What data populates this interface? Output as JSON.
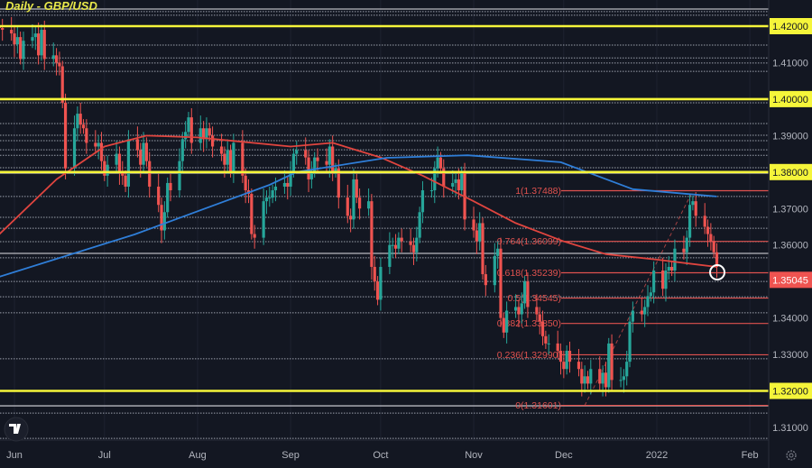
{
  "chart_data": {
    "type": "candlestick",
    "title": "Daily - GBP/USD",
    "first_candle_date": "2021-05-27",
    "closes": [
      1.4195,
      1.419,
      1.418,
      1.415,
      1.417,
      1.411,
      1.416,
      1.417,
      1.418,
      1.412,
      1.419,
      1.411,
      1.412,
      1.41,
      1.409,
      1.399,
      1.381,
      1.392,
      1.396,
      1.393,
      1.392,
      1.388,
      1.387,
      1.388,
      1.383,
      1.379,
      1.382,
      1.385,
      1.38,
      1.379,
      1.376,
      1.389,
      1.386,
      1.382,
      1.388,
      1.383,
      1.376,
      1.371,
      1.364,
      1.369,
      1.377,
      1.375,
      1.383,
      1.389,
      1.391,
      1.395,
      1.388,
      1.392,
      1.389,
      1.392,
      1.39,
      1.387,
      1.385,
      1.382,
      1.386,
      1.38,
      1.388,
      1.379,
      1.375,
      1.374,
      1.363,
      1.362,
      1.372,
      1.373,
      1.373,
      1.375,
      1.376,
      1.377,
      1.376,
      1.38,
      1.385,
      1.386,
      1.384,
      1.378,
      1.38,
      1.384,
      1.383,
      1.382,
      1.387,
      1.38,
      1.381,
      1.373,
      1.368,
      1.367,
      1.378,
      1.373,
      1.37,
      1.372,
      1.354,
      1.35,
      1.345,
      1.354,
      1.36,
      1.36,
      1.359,
      1.362,
      1.361,
      1.36,
      1.358,
      1.362,
      1.369,
      1.375,
      1.375,
      1.381,
      1.384,
      1.381,
      1.376,
      1.377,
      1.378,
      1.375,
      1.38,
      1.367,
      1.364,
      1.361,
      1.366,
      1.352,
      1.349,
      1.357,
      1.359,
      1.34,
      1.336,
      1.342,
      1.343,
      1.341,
      1.344,
      1.35,
      1.343,
      1.341,
      1.339,
      1.335,
      1.333,
      1.333,
      1.331,
      1.328,
      1.326,
      1.331,
      1.328,
      1.326,
      1.322,
      1.324,
      1.322,
      1.326,
      1.322,
      1.325,
      1.321,
      1.333,
      1.323,
      1.323,
      1.324,
      1.328,
      1.339,
      1.342,
      1.341,
      1.343,
      1.346,
      1.347,
      1.353,
      1.348,
      1.353,
      1.354,
      1.353,
      1.359,
      1.358,
      1.362,
      1.371,
      1.372,
      1.368,
      1.365,
      1.363,
      1.361,
      1.358,
      1.354
    ],
    "ma_red": [
      [
        "2021-05-27",
        1.363
      ],
      [
        "2021-06-15",
        1.378
      ],
      [
        "2021-07-01",
        1.387
      ],
      [
        "2021-07-15",
        1.39
      ],
      [
        "2021-08-01",
        1.3895
      ],
      [
        "2021-09-01",
        1.387
      ],
      [
        "2021-09-15",
        1.388
      ],
      [
        "2021-10-01",
        1.384
      ],
      [
        "2021-10-15",
        1.379
      ],
      [
        "2021-11-01",
        1.372
      ],
      [
        "2021-11-15",
        1.366
      ],
      [
        "2021-12-01",
        1.361
      ],
      [
        "2021-12-15",
        1.3575
      ],
      [
        "2022-01-01",
        1.356
      ],
      [
        "2022-01-21",
        1.354
      ]
    ],
    "ma_blue": [
      [
        "2021-05-27",
        1.3513
      ],
      [
        "2021-07-11",
        1.3629
      ],
      [
        "2021-08-25",
        1.3765
      ],
      [
        "2021-09-03",
        1.38
      ],
      [
        "2021-10-03",
        1.3839
      ],
      [
        "2021-10-30",
        1.3846
      ],
      [
        "2021-11-30",
        1.3827
      ],
      [
        "2021-12-24",
        1.3753
      ],
      [
        "2022-01-21",
        1.3733
      ]
    ],
    "ylim": [
      1.303,
      1.4272
    ],
    "y_ticks": [
      "1.42000",
      "1.41000",
      "1.40000",
      "1.39000",
      "1.38000",
      "1.37000",
      "1.36000",
      "1.34000",
      "1.33000",
      "1.32000",
      "1.31000"
    ],
    "x_ticks": [
      [
        "Jun",
        "2021-06-01"
      ],
      [
        "Jul",
        "2021-07-01"
      ],
      [
        "Aug",
        "2021-08-01"
      ],
      [
        "Sep",
        "2021-09-01"
      ],
      [
        "Oct",
        "2021-10-01"
      ],
      [
        "Nov",
        "2021-11-01"
      ],
      [
        "Dec",
        "2021-12-01"
      ],
      [
        "2022",
        "2022-01-01"
      ],
      [
        "Feb",
        "2022-02-01"
      ]
    ],
    "key_levels": [
      1.42,
      1.4,
      1.38,
      1.32
    ],
    "solid_levels": [
      1.4247,
      1.3797,
      1.3577,
      1.3159
    ],
    "dotted_levels": [
      1.424,
      1.423,
      1.4148,
      1.4113,
      1.4099,
      1.4076,
      1.399,
      1.3933,
      1.3901,
      1.3886,
      1.3861,
      1.3846,
      1.3812,
      1.3733,
      1.3676,
      1.3646,
      1.3609,
      1.3565,
      1.35,
      1.3458,
      1.3414,
      1.3288,
      1.3139,
      1.307
    ],
    "current_price": "1.35045",
    "fibonacci": {
      "from": [
        "2021-12-08",
        1.31601
      ],
      "to": [
        "2022-01-13",
        1.37488
      ],
      "levels": [
        {
          "ratio": "1",
          "price": 1.37488,
          "label": "1(1.37488)"
        },
        {
          "ratio": "0.764",
          "price": 1.36099,
          "label": "0.764(1.36099)"
        },
        {
          "ratio": "0.618",
          "price": 1.35239,
          "label": "0.618(1.35239)"
        },
        {
          "ratio": "0.5",
          "price": 1.34545,
          "label": "0.5(1.34545)"
        },
        {
          "ratio": "0.382",
          "price": 1.3385,
          "label": "0.382(1.33850)"
        },
        {
          "ratio": "0.236",
          "price": 1.3299,
          "label": "0.236(1.32990)"
        },
        {
          "ratio": "0",
          "price": 1.31601,
          "label": "0(1.31601)"
        }
      ]
    },
    "highlight_circle": [
      "2022-01-21",
      1.3525
    ],
    "colors": {
      "up": "#26a69a",
      "down": "#ef5350",
      "ma_red": "#e0453f",
      "ma_blue": "#2f7ed8",
      "key_level": "#f5f53a",
      "fib": "#e0524f",
      "background": "#131722",
      "current_price_bg": "#ef5350"
    }
  }
}
